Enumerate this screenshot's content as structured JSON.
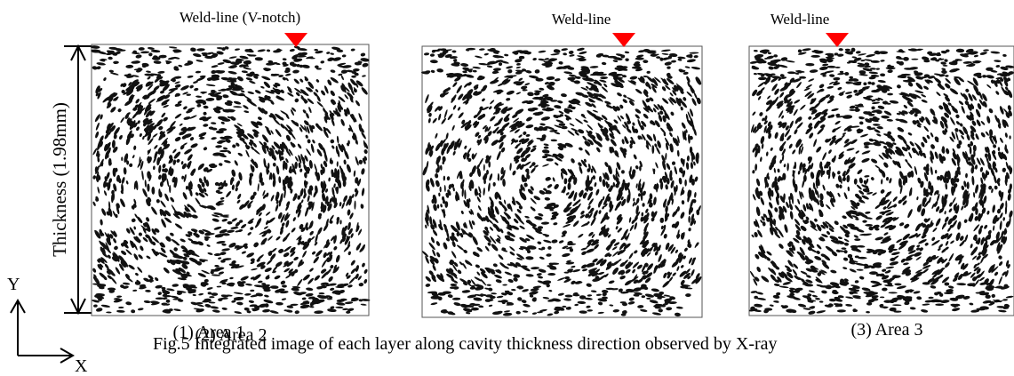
{
  "figure": {
    "panels": [
      {
        "weld_label": "Weld-line (V-notch)",
        "caption": "(1)   Area 1"
      },
      {
        "weld_label": "Weld-line",
        "caption": "(2)   Area 2"
      },
      {
        "weld_label": "Weld-line",
        "caption": "(3) Area 3"
      }
    ],
    "thickness_label": "Thickness (1.98mm)",
    "axes": {
      "y": "Y",
      "x": "X"
    },
    "caption": "Fig.5 Integrated image of each layer along cavity thickness direction observed by X-ray"
  }
}
